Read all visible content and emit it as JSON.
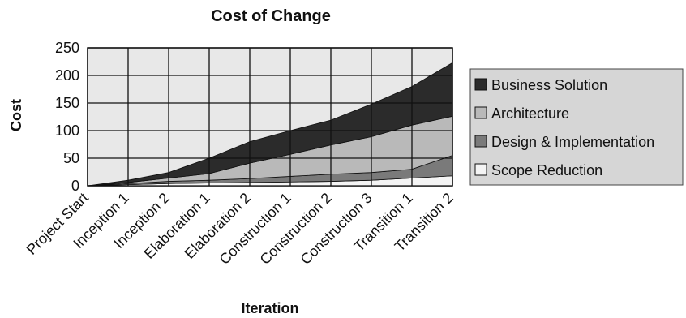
{
  "chart_data": {
    "type": "area",
    "stacked": true,
    "title": "Cost of Change",
    "xlabel": "Iteration",
    "ylabel": "Cost",
    "ylim": [
      0,
      250
    ],
    "yticks": [
      0,
      50,
      100,
      150,
      200,
      250
    ],
    "grid": true,
    "legend_position": "right",
    "categories": [
      "Project Start",
      "Inception 1",
      "Inception 2",
      "Elaboration 1",
      "Elaboration 2",
      "Construction 1",
      "Construction 2",
      "Construction 3",
      "Transition 1",
      "Transition 2"
    ],
    "series": [
      {
        "name": "Scope Reduction",
        "color": "#f4f4f4",
        "values": [
          0,
          2,
          4,
          5,
          6,
          7,
          8,
          10,
          14,
          18
        ]
      },
      {
        "name": "Design & Implementation",
        "color": "#7a7a7a",
        "values": [
          0,
          2,
          4,
          5,
          7,
          10,
          13,
          14,
          16,
          37
        ]
      },
      {
        "name": "Architecture",
        "color": "#b9b9b9",
        "values": [
          0,
          2,
          6,
          12,
          28,
          40,
          53,
          65,
          80,
          71
        ]
      },
      {
        "name": "Business Solution",
        "color": "#2b2b2b",
        "values": [
          0,
          4,
          10,
          28,
          39,
          43,
          45,
          59,
          70,
          97
        ]
      }
    ],
    "legend_order": [
      "Business Solution",
      "Architecture",
      "Design & Implementation",
      "Scope Reduction"
    ],
    "colors": {
      "plot_background": "#e8e8e8",
      "legend_background": "#d6d6d6",
      "grid": "#111111"
    }
  }
}
